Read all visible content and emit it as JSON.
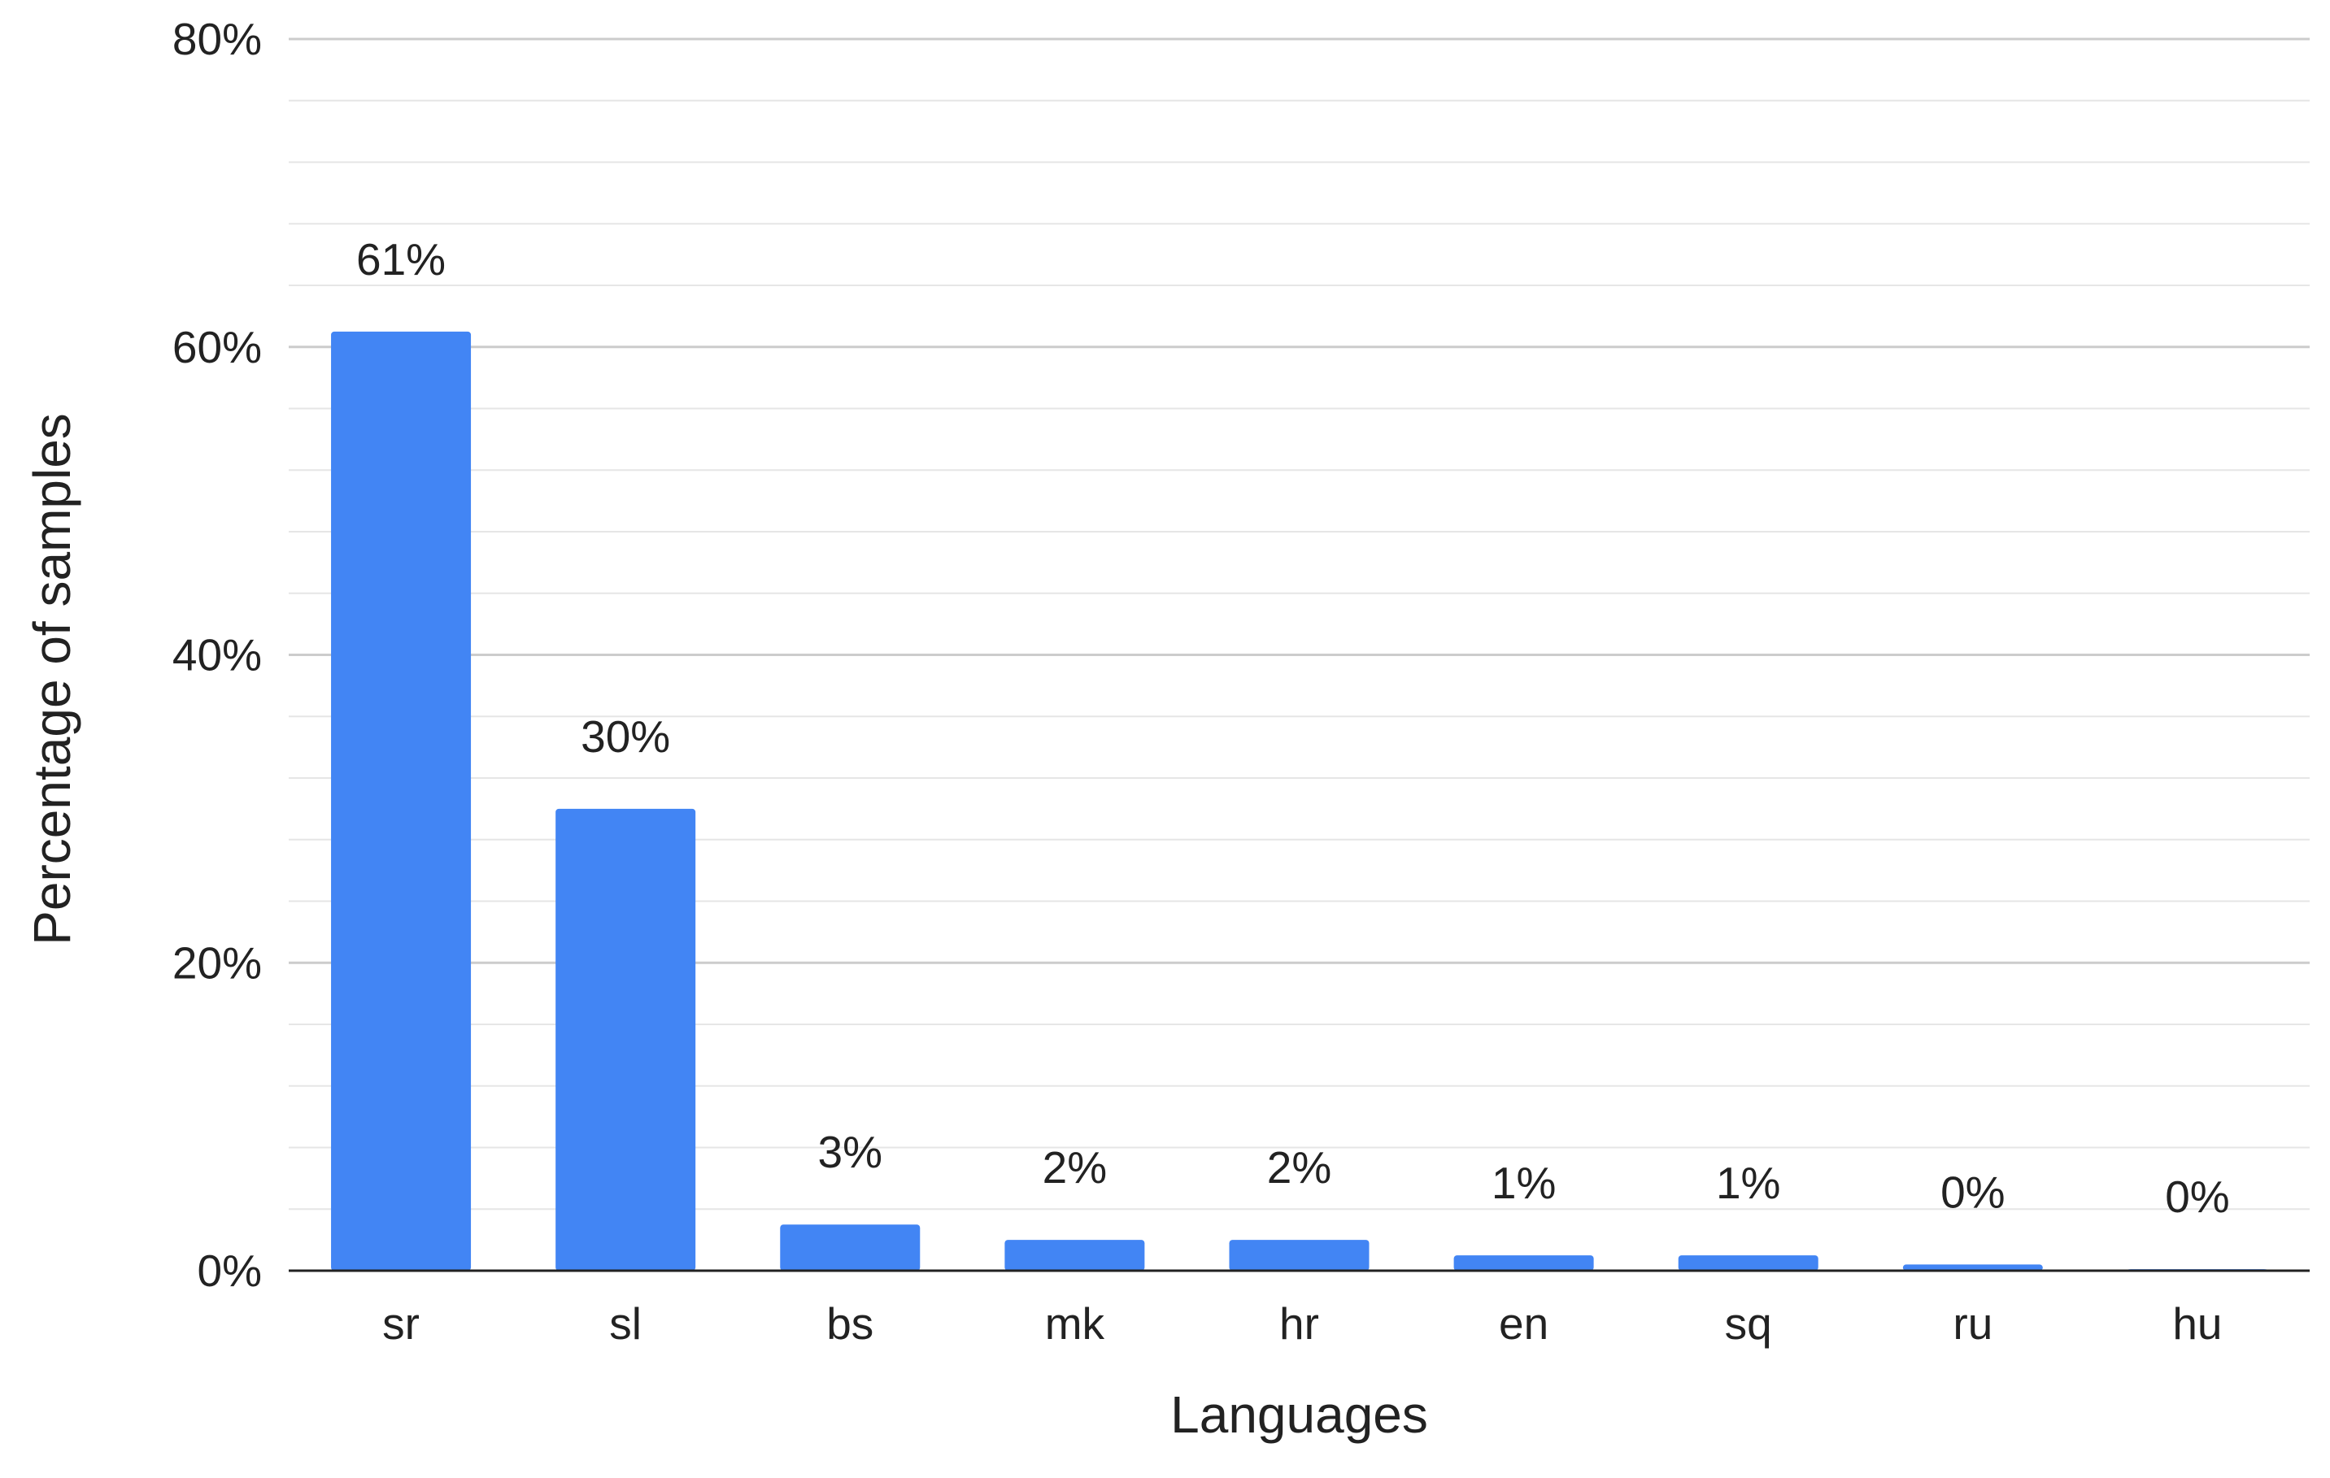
{
  "chart_data": {
    "type": "bar",
    "title": "",
    "xlabel": "Languages",
    "ylabel": "Percentage of samples",
    "categories": [
      "sr",
      "sl",
      "bs",
      "mk",
      "hr",
      "en",
      "sq",
      "ru",
      "hu"
    ],
    "values": [
      61,
      30,
      3,
      2,
      2,
      1,
      1,
      0.4,
      0.1
    ],
    "data_labels": [
      "61%",
      "30%",
      "3%",
      "2%",
      "2%",
      "1%",
      "1%",
      "0%",
      "0%"
    ],
    "ylim": [
      0,
      80
    ],
    "yticks": [
      0,
      20,
      40,
      60,
      80
    ],
    "ytick_labels": [
      "0%",
      "20%",
      "40%",
      "60%",
      "80%"
    ],
    "minor_gridlines_per_major": 4,
    "grid": true,
    "legend": "none",
    "bar_color": "#4285F4",
    "axis_color": "#222222",
    "major_grid_color": "#cccccc",
    "minor_grid_color": "#e6e6e6"
  }
}
